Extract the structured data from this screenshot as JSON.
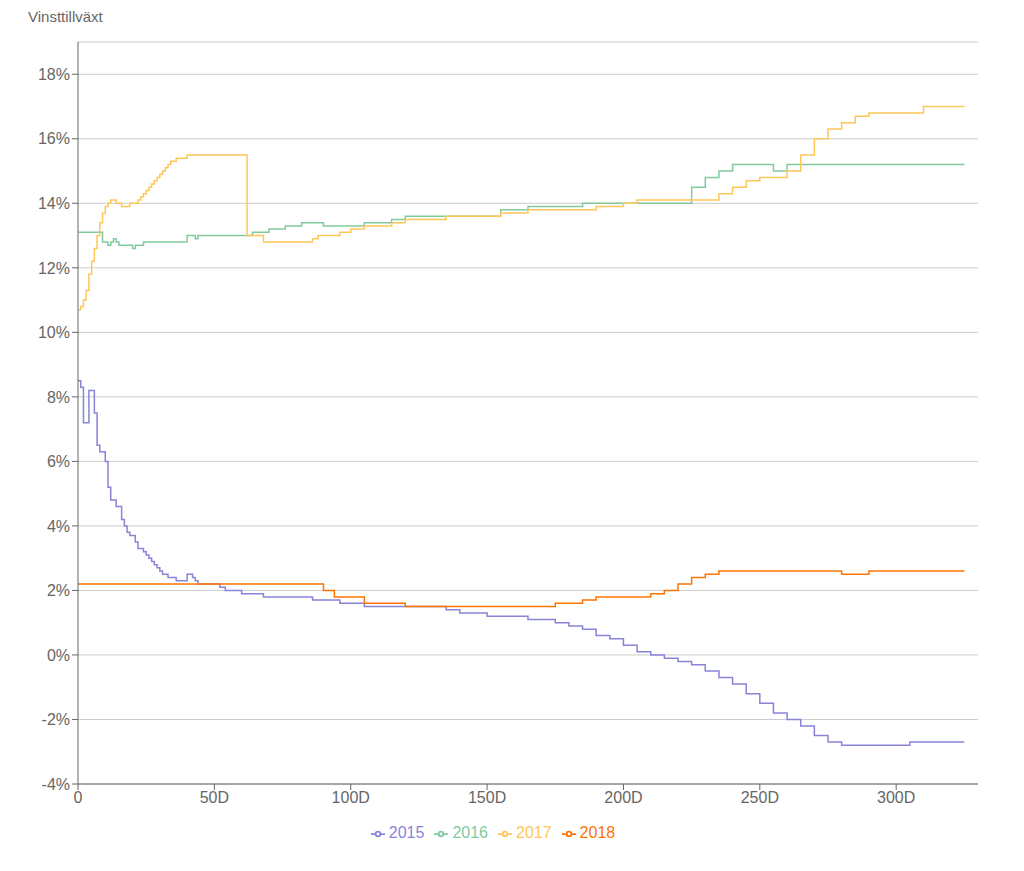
{
  "chart_data": {
    "type": "step",
    "ylabel": "Vinsttillväxt",
    "xlim": [
      0,
      330
    ],
    "ylim": [
      -0.04,
      0.19
    ],
    "xticks": [
      0,
      {
        "value": 50,
        "label": "50D"
      },
      {
        "value": 100,
        "label": "100D"
      },
      {
        "value": 150,
        "label": "150D"
      },
      {
        "value": 200,
        "label": "200D"
      },
      {
        "value": 250,
        "label": "250D"
      },
      {
        "value": 300,
        "label": "300D"
      }
    ],
    "yticks": [
      {
        "value": -0.04,
        "label": "-4%"
      },
      {
        "value": -0.02,
        "label": "-2%"
      },
      {
        "value": 0.0,
        "label": "0%"
      },
      {
        "value": 0.02,
        "label": "2%"
      },
      {
        "value": 0.04,
        "label": "4%"
      },
      {
        "value": 0.06,
        "label": "6%"
      },
      {
        "value": 0.08,
        "label": "8%"
      },
      {
        "value": 0.1,
        "label": "10%"
      },
      {
        "value": 0.12,
        "label": "12%"
      },
      {
        "value": 0.14,
        "label": "14%"
      },
      {
        "value": 0.16,
        "label": "16%"
      },
      {
        "value": 0.18,
        "label": "18%"
      }
    ],
    "grid": true,
    "legend": "bottom",
    "series": [
      {
        "name": "2015",
        "color": "#8884d8",
        "x": [
          0,
          1,
          2,
          3,
          4,
          5,
          6,
          7,
          8,
          9,
          10,
          11,
          12,
          13,
          14,
          15,
          16,
          17,
          18,
          19,
          20,
          21,
          22,
          23,
          24,
          25,
          26,
          27,
          28,
          29,
          30,
          31,
          32,
          33,
          34,
          35,
          36,
          37,
          38,
          39,
          40,
          41,
          42,
          43,
          44,
          45,
          46,
          47,
          48,
          49,
          50,
          52,
          54,
          56,
          58,
          60,
          62,
          64,
          66,
          68,
          70,
          72,
          74,
          76,
          78,
          80,
          82,
          84,
          86,
          88,
          90,
          92,
          94,
          96,
          98,
          100,
          105,
          110,
          115,
          120,
          125,
          130,
          135,
          140,
          145,
          150,
          155,
          160,
          165,
          170,
          175,
          180,
          185,
          190,
          195,
          200,
          205,
          210,
          215,
          220,
          225,
          230,
          235,
          240,
          245,
          250,
          255,
          260,
          265,
          270,
          275,
          280,
          285,
          290,
          295,
          300,
          305,
          310,
          315,
          320,
          325
        ],
        "values": [
          0.085,
          0.083,
          0.072,
          0.072,
          0.082,
          0.082,
          0.075,
          0.065,
          0.063,
          0.063,
          0.06,
          0.052,
          0.048,
          0.048,
          0.046,
          0.046,
          0.042,
          0.04,
          0.038,
          0.037,
          0.037,
          0.035,
          0.033,
          0.033,
          0.032,
          0.031,
          0.03,
          0.029,
          0.028,
          0.027,
          0.026,
          0.025,
          0.025,
          0.024,
          0.024,
          0.024,
          0.023,
          0.023,
          0.023,
          0.023,
          0.025,
          0.025,
          0.024,
          0.023,
          0.022,
          0.022,
          0.022,
          0.022,
          0.022,
          0.022,
          0.022,
          0.021,
          0.02,
          0.02,
          0.02,
          0.019,
          0.019,
          0.019,
          0.019,
          0.018,
          0.018,
          0.018,
          0.018,
          0.018,
          0.018,
          0.018,
          0.018,
          0.018,
          0.017,
          0.017,
          0.017,
          0.017,
          0.017,
          0.016,
          0.016,
          0.016,
          0.015,
          0.015,
          0.015,
          0.015,
          0.015,
          0.015,
          0.014,
          0.013,
          0.013,
          0.012,
          0.012,
          0.012,
          0.011,
          0.011,
          0.01,
          0.009,
          0.008,
          0.006,
          0.005,
          0.003,
          0.001,
          0.0,
          -0.001,
          -0.002,
          -0.003,
          -0.005,
          -0.007,
          -0.009,
          -0.012,
          -0.015,
          -0.018,
          -0.02,
          -0.022,
          -0.025,
          -0.027,
          -0.028,
          -0.028,
          -0.028,
          -0.028,
          -0.028,
          -0.027,
          -0.027,
          -0.027,
          -0.027,
          -0.027
        ]
      },
      {
        "name": "2016",
        "color": "#82ca9d",
        "x": [
          0,
          1,
          2,
          3,
          4,
          5,
          6,
          7,
          8,
          9,
          10,
          11,
          12,
          13,
          14,
          15,
          16,
          17,
          18,
          19,
          20,
          21,
          22,
          23,
          24,
          25,
          26,
          27,
          28,
          29,
          30,
          31,
          32,
          33,
          34,
          35,
          36,
          37,
          38,
          39,
          40,
          41,
          42,
          43,
          44,
          45,
          46,
          47,
          48,
          50,
          52,
          54,
          56,
          58,
          60,
          62,
          64,
          66,
          68,
          70,
          72,
          74,
          76,
          78,
          80,
          82,
          84,
          86,
          88,
          90,
          92,
          94,
          96,
          98,
          100,
          105,
          110,
          115,
          120,
          125,
          130,
          135,
          140,
          145,
          150,
          155,
          160,
          165,
          170,
          175,
          180,
          185,
          190,
          195,
          200,
          205,
          210,
          215,
          220,
          225,
          230,
          235,
          240,
          245,
          250,
          255,
          260,
          265,
          270,
          275,
          280,
          285,
          290,
          295,
          300,
          305,
          310,
          315,
          320,
          325
        ],
        "values": [
          0.131,
          0.131,
          0.131,
          0.131,
          0.131,
          0.131,
          0.131,
          0.131,
          0.131,
          0.128,
          0.128,
          0.127,
          0.128,
          0.129,
          0.128,
          0.127,
          0.127,
          0.127,
          0.127,
          0.127,
          0.126,
          0.127,
          0.127,
          0.127,
          0.128,
          0.128,
          0.128,
          0.128,
          0.128,
          0.128,
          0.128,
          0.128,
          0.128,
          0.128,
          0.128,
          0.128,
          0.128,
          0.128,
          0.128,
          0.128,
          0.13,
          0.13,
          0.13,
          0.129,
          0.13,
          0.13,
          0.13,
          0.13,
          0.13,
          0.13,
          0.13,
          0.13,
          0.13,
          0.13,
          0.13,
          0.13,
          0.131,
          0.131,
          0.131,
          0.132,
          0.132,
          0.132,
          0.133,
          0.133,
          0.133,
          0.134,
          0.134,
          0.134,
          0.134,
          0.133,
          0.133,
          0.133,
          0.133,
          0.133,
          0.133,
          0.134,
          0.134,
          0.135,
          0.136,
          0.136,
          0.136,
          0.136,
          0.136,
          0.136,
          0.136,
          0.138,
          0.138,
          0.139,
          0.139,
          0.139,
          0.139,
          0.14,
          0.14,
          0.14,
          0.14,
          0.14,
          0.14,
          0.14,
          0.14,
          0.145,
          0.148,
          0.15,
          0.152,
          0.152,
          0.152,
          0.15,
          0.152,
          0.152,
          0.152,
          0.152,
          0.152,
          0.152,
          0.152,
          0.152,
          0.152,
          0.152,
          0.152,
          0.152,
          0.152,
          0.152
        ]
      },
      {
        "name": "2017",
        "color": "#ffc658",
        "x": [
          0,
          1,
          2,
          3,
          4,
          5,
          6,
          7,
          8,
          9,
          10,
          11,
          12,
          13,
          14,
          15,
          16,
          17,
          18,
          19,
          20,
          21,
          22,
          23,
          24,
          25,
          26,
          27,
          28,
          29,
          30,
          31,
          32,
          33,
          34,
          35,
          36,
          37,
          38,
          39,
          40,
          41,
          42,
          43,
          44,
          45,
          46,
          47,
          48,
          50,
          52,
          54,
          56,
          58,
          60,
          62,
          64,
          66,
          68,
          70,
          72,
          74,
          76,
          78,
          80,
          82,
          84,
          86,
          88,
          90,
          92,
          94,
          96,
          98,
          100,
          105,
          110,
          115,
          120,
          125,
          130,
          135,
          140,
          145,
          150,
          155,
          160,
          165,
          170,
          175,
          180,
          185,
          190,
          195,
          200,
          205,
          210,
          215,
          220,
          225,
          230,
          235,
          240,
          245,
          250,
          255,
          260,
          265,
          270,
          275,
          280,
          285,
          290,
          295,
          300,
          305,
          310,
          315,
          320,
          325
        ],
        "values": [
          0.107,
          0.108,
          0.11,
          0.113,
          0.118,
          0.122,
          0.126,
          0.13,
          0.134,
          0.137,
          0.139,
          0.14,
          0.141,
          0.141,
          0.14,
          0.14,
          0.139,
          0.139,
          0.139,
          0.14,
          0.14,
          0.14,
          0.141,
          0.142,
          0.143,
          0.144,
          0.145,
          0.146,
          0.147,
          0.148,
          0.149,
          0.15,
          0.151,
          0.152,
          0.153,
          0.153,
          0.154,
          0.154,
          0.154,
          0.154,
          0.155,
          0.155,
          0.155,
          0.155,
          0.155,
          0.155,
          0.155,
          0.155,
          0.155,
          0.155,
          0.155,
          0.155,
          0.155,
          0.155,
          0.155,
          0.13,
          0.13,
          0.13,
          0.128,
          0.128,
          0.128,
          0.128,
          0.128,
          0.128,
          0.128,
          0.128,
          0.128,
          0.129,
          0.13,
          0.13,
          0.13,
          0.13,
          0.131,
          0.131,
          0.132,
          0.133,
          0.133,
          0.134,
          0.135,
          0.135,
          0.135,
          0.136,
          0.136,
          0.136,
          0.136,
          0.137,
          0.137,
          0.138,
          0.138,
          0.138,
          0.138,
          0.138,
          0.139,
          0.139,
          0.14,
          0.141,
          0.141,
          0.141,
          0.141,
          0.141,
          0.141,
          0.143,
          0.145,
          0.147,
          0.148,
          0.148,
          0.15,
          0.155,
          0.16,
          0.163,
          0.165,
          0.167,
          0.168,
          0.168,
          0.168,
          0.168,
          0.17,
          0.17,
          0.17,
          0.17
        ]
      },
      {
        "name": "2018",
        "color": "#ff7300",
        "x": [
          0,
          1,
          2,
          3,
          4,
          5,
          6,
          7,
          8,
          9,
          10,
          11,
          12,
          13,
          14,
          15,
          16,
          17,
          18,
          19,
          20,
          21,
          22,
          23,
          24,
          25,
          26,
          27,
          28,
          29,
          30,
          31,
          32,
          33,
          34,
          35,
          36,
          37,
          38,
          39,
          40,
          41,
          42,
          43,
          44,
          45,
          46,
          47,
          48,
          50,
          52,
          54,
          56,
          58,
          60,
          62,
          64,
          66,
          68,
          70,
          72,
          74,
          76,
          78,
          80,
          82,
          84,
          86,
          88,
          90,
          92,
          94,
          96,
          98,
          100,
          105,
          110,
          115,
          120,
          125,
          130,
          135,
          140,
          145,
          150,
          155,
          160,
          165,
          170,
          175,
          180,
          185,
          190,
          195,
          200,
          205,
          210,
          215,
          220,
          225,
          230,
          235,
          240,
          245,
          250,
          255,
          260,
          265,
          270,
          275,
          280,
          285,
          290,
          295,
          300,
          305,
          310,
          315,
          320,
          325
        ],
        "values": [
          0.022,
          0.022,
          0.022,
          0.022,
          0.022,
          0.022,
          0.022,
          0.022,
          0.022,
          0.022,
          0.022,
          0.022,
          0.022,
          0.022,
          0.022,
          0.022,
          0.022,
          0.022,
          0.022,
          0.022,
          0.022,
          0.022,
          0.022,
          0.022,
          0.022,
          0.022,
          0.022,
          0.022,
          0.022,
          0.022,
          0.022,
          0.022,
          0.022,
          0.022,
          0.022,
          0.022,
          0.022,
          0.022,
          0.022,
          0.022,
          0.022,
          0.022,
          0.022,
          0.022,
          0.022,
          0.022,
          0.022,
          0.022,
          0.022,
          0.022,
          0.022,
          0.022,
          0.022,
          0.022,
          0.022,
          0.022,
          0.022,
          0.022,
          0.022,
          0.022,
          0.022,
          0.022,
          0.022,
          0.022,
          0.022,
          0.022,
          0.022,
          0.022,
          0.022,
          0.02,
          0.02,
          0.018,
          0.018,
          0.018,
          0.018,
          0.016,
          0.016,
          0.016,
          0.015,
          0.015,
          0.015,
          0.015,
          0.015,
          0.015,
          0.015,
          0.015,
          0.015,
          0.015,
          0.015,
          0.016,
          0.016,
          0.017,
          0.018,
          0.018,
          0.018,
          0.018,
          0.019,
          0.02,
          0.022,
          0.024,
          0.025,
          0.026,
          0.026,
          0.026,
          0.026,
          0.026,
          0.026,
          0.026,
          0.026,
          0.026,
          0.025,
          0.025,
          0.026,
          0.026,
          0.026,
          0.026,
          0.026,
          0.026,
          0.026,
          0.026
        ]
      }
    ]
  }
}
